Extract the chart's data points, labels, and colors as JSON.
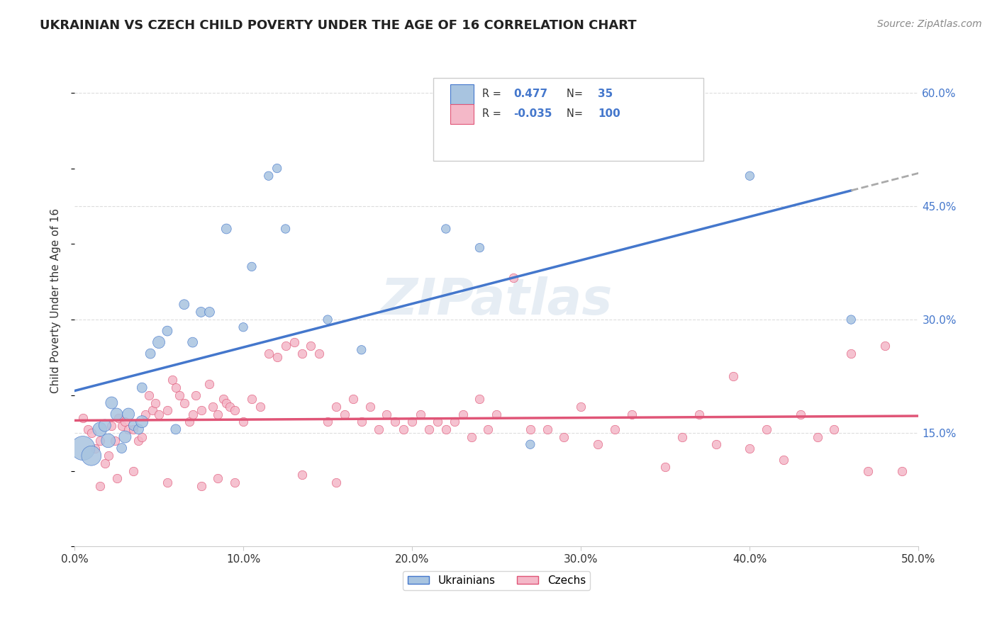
{
  "title": "UKRAINIAN VS CZECH CHILD POVERTY UNDER THE AGE OF 16 CORRELATION CHART",
  "source": "Source: ZipAtlas.com",
  "ylabel": "Child Poverty Under the Age of 16",
  "xlim": [
    0.0,
    0.5
  ],
  "ylim": [
    0.0,
    0.65
  ],
  "xticks": [
    0.0,
    0.1,
    0.2,
    0.3,
    0.4,
    0.5
  ],
  "yticks_right": [
    0.15,
    0.3,
    0.45,
    0.6
  ],
  "ytick_labels_right": [
    "15.0%",
    "30.0%",
    "45.0%",
    "60.0%"
  ],
  "xtick_labels": [
    "0.0%",
    "10.0%",
    "20.0%",
    "30.0%",
    "40.0%",
    "50.0%"
  ],
  "ukrainian_color": "#a8c4e0",
  "czech_color": "#f4b8c8",
  "ukrainian_R": 0.477,
  "ukrainian_N": 35,
  "czech_R": -0.035,
  "czech_N": 100,
  "legend_label_ukrainian": "Ukrainians",
  "legend_label_czech": "Czechs",
  "watermark": "ZIPatlas",
  "background_color": "#ffffff",
  "grid_color": "#dddddd",
  "trendline_ukrainian_color": "#4477cc",
  "trendline_czech_color": "#e05577",
  "trendline_dashed_color": "#aaaaaa",
  "ukrainian_x": [
    0.005,
    0.01,
    0.015,
    0.018,
    0.02,
    0.022,
    0.025,
    0.028,
    0.03,
    0.032,
    0.035,
    0.038,
    0.04,
    0.04,
    0.045,
    0.05,
    0.055,
    0.06,
    0.065,
    0.07,
    0.075,
    0.08,
    0.09,
    0.1,
    0.105,
    0.115,
    0.12,
    0.125,
    0.15,
    0.17,
    0.22,
    0.24,
    0.27,
    0.4,
    0.46
  ],
  "ukrainian_y": [
    0.13,
    0.12,
    0.155,
    0.16,
    0.14,
    0.19,
    0.175,
    0.13,
    0.145,
    0.175,
    0.16,
    0.155,
    0.165,
    0.21,
    0.255,
    0.27,
    0.285,
    0.155,
    0.32,
    0.27,
    0.31,
    0.31,
    0.42,
    0.29,
    0.37,
    0.49,
    0.5,
    0.42,
    0.3,
    0.26,
    0.42,
    0.395,
    0.135,
    0.49,
    0.3
  ],
  "ukrainian_sizes": [
    600,
    400,
    200,
    150,
    200,
    150,
    150,
    100,
    150,
    150,
    100,
    100,
    150,
    100,
    100,
    150,
    100,
    100,
    100,
    100,
    100,
    100,
    100,
    80,
    80,
    80,
    80,
    80,
    80,
    80,
    80,
    80,
    80,
    80,
    80
  ],
  "czech_x": [
    0.005,
    0.008,
    0.01,
    0.012,
    0.015,
    0.018,
    0.02,
    0.022,
    0.024,
    0.026,
    0.028,
    0.03,
    0.032,
    0.035,
    0.038,
    0.04,
    0.042,
    0.044,
    0.046,
    0.048,
    0.05,
    0.055,
    0.058,
    0.06,
    0.062,
    0.065,
    0.068,
    0.07,
    0.072,
    0.075,
    0.08,
    0.082,
    0.085,
    0.088,
    0.09,
    0.092,
    0.095,
    0.1,
    0.105,
    0.11,
    0.115,
    0.12,
    0.125,
    0.13,
    0.135,
    0.14,
    0.145,
    0.15,
    0.155,
    0.16,
    0.165,
    0.17,
    0.175,
    0.18,
    0.185,
    0.19,
    0.195,
    0.2,
    0.205,
    0.21,
    0.215,
    0.22,
    0.225,
    0.23,
    0.235,
    0.24,
    0.245,
    0.25,
    0.26,
    0.27,
    0.28,
    0.29,
    0.3,
    0.31,
    0.32,
    0.33,
    0.35,
    0.36,
    0.37,
    0.38,
    0.39,
    0.4,
    0.41,
    0.42,
    0.43,
    0.44,
    0.45,
    0.46,
    0.47,
    0.48,
    0.49,
    0.015,
    0.025,
    0.035,
    0.055,
    0.075,
    0.085,
    0.095,
    0.135,
    0.155
  ],
  "czech_y": [
    0.17,
    0.155,
    0.15,
    0.13,
    0.14,
    0.11,
    0.12,
    0.16,
    0.14,
    0.17,
    0.16,
    0.165,
    0.155,
    0.155,
    0.14,
    0.145,
    0.175,
    0.2,
    0.18,
    0.19,
    0.175,
    0.18,
    0.22,
    0.21,
    0.2,
    0.19,
    0.165,
    0.175,
    0.2,
    0.18,
    0.215,
    0.185,
    0.175,
    0.195,
    0.19,
    0.185,
    0.18,
    0.165,
    0.195,
    0.185,
    0.255,
    0.25,
    0.265,
    0.27,
    0.255,
    0.265,
    0.255,
    0.165,
    0.185,
    0.175,
    0.195,
    0.165,
    0.185,
    0.155,
    0.175,
    0.165,
    0.155,
    0.165,
    0.175,
    0.155,
    0.165,
    0.155,
    0.165,
    0.175,
    0.145,
    0.195,
    0.155,
    0.175,
    0.355,
    0.155,
    0.155,
    0.145,
    0.185,
    0.135,
    0.155,
    0.175,
    0.105,
    0.145,
    0.175,
    0.135,
    0.225,
    0.13,
    0.155,
    0.115,
    0.175,
    0.145,
    0.155,
    0.255,
    0.1,
    0.265,
    0.1,
    0.08,
    0.09,
    0.1,
    0.085,
    0.08,
    0.09,
    0.085,
    0.095,
    0.085
  ]
}
